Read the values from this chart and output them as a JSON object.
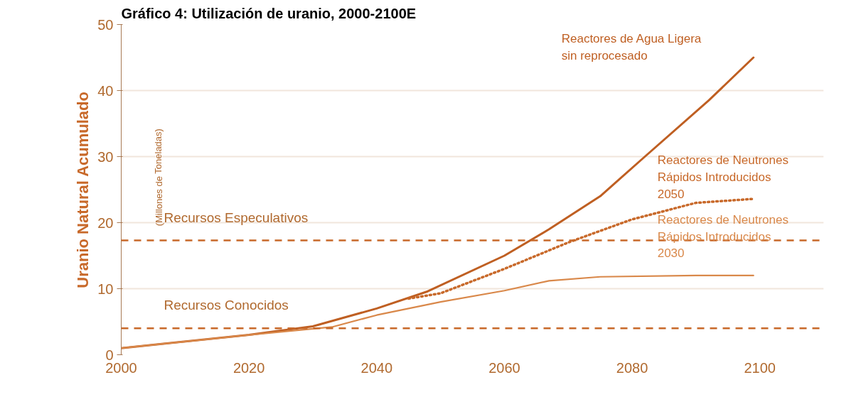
{
  "chart_data": {
    "type": "line",
    "title": "Gráfico 4: Utilización de uranio, 2000-2100E",
    "ylabel": "Uranio Natural Acumulado",
    "annotations": [
      "(Millones de Toneladas)"
    ],
    "xlim": [
      2000,
      2110
    ],
    "xticks": [
      2000,
      2020,
      2040,
      2060,
      2080,
      2100
    ],
    "ylim": [
      0,
      50
    ],
    "yticks": [
      0,
      10,
      20,
      30,
      40,
      50
    ],
    "grid": "y",
    "legend": false,
    "series": [
      {
        "name": "Reactores de Agua Ligera\nsin reprocesado",
        "color": "#bf5f22",
        "line_style": "solid",
        "x": [
          2000,
          2020,
          2030,
          2040,
          2048,
          2060,
          2067,
          2075,
          2082,
          2092,
          2099
        ],
        "values": [
          1.0,
          3.0,
          4.3,
          7.0,
          9.6,
          15.0,
          19.0,
          24.0,
          30.0,
          38.5,
          45.0
        ]
      },
      {
        "name": "Reactores de Neutrones\nRápidos Introducidos\n2050",
        "color": "#c8692a",
        "line_style": "dotted",
        "x": [
          2045,
          2050,
          2060,
          2070,
          2080,
          2090,
          2099
        ],
        "values": [
          8.5,
          9.3,
          13.0,
          17.0,
          20.5,
          23.0,
          23.6
        ]
      },
      {
        "name": "Reactores de Neutrones\nRápidos Introducidos\n2030",
        "color": "#d9884a",
        "line_style": "solid",
        "x": [
          2000,
          2020,
          2033,
          2040,
          2050,
          2060,
          2067,
          2075,
          2090,
          2099
        ],
        "values": [
          1.0,
          3.0,
          4.2,
          6.0,
          8.0,
          9.7,
          11.2,
          11.8,
          12.0,
          12.0
        ]
      }
    ],
    "ref_lines": [
      {
        "axis": "y",
        "value": 17.3,
        "label": "Recursos Especulativos",
        "color": "#c8692a",
        "line_style": "dashed"
      },
      {
        "axis": "y",
        "value": 4.0,
        "label": "Recursos Conocidos",
        "color": "#c8692a",
        "line_style": "dashed"
      }
    ]
  }
}
